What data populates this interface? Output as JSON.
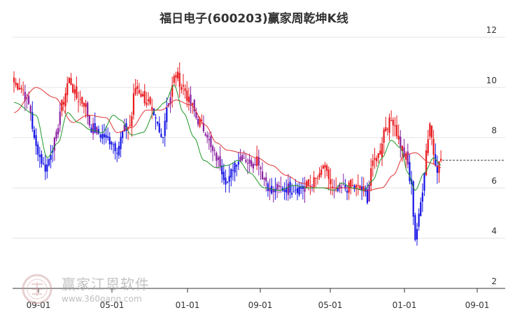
{
  "page": {
    "title": "福日电子(600203)赢家周乾坤K线",
    "watermark": {
      "brand": "赢家江恩软件",
      "url": "www.360gann.com",
      "logo_icon": "seal-logo-icon"
    }
  },
  "chart_data": {
    "type": "candlestick",
    "title": "福日电子(600203)赢家周乾坤K线",
    "xlabel": "",
    "ylabel": "",
    "x_ticks": [
      "09-01",
      "05-01",
      "01-01",
      "09-01",
      "05-01",
      "01-01",
      "09-01"
    ],
    "y_ticks": [
      2,
      4,
      6,
      8,
      10,
      12
    ],
    "ylim": [
      2,
      12.7
    ],
    "grid": true,
    "last_close_line": 7.1,
    "colors": {
      "up": "#e8191d",
      "down": "#1414e6",
      "neutral": "#8a1ea0",
      "ma_fast": "#1e9628",
      "ma_slow": "#e03232"
    },
    "ma_fast_anchors": [
      [
        0,
        9.4
      ],
      [
        12,
        8.9
      ],
      [
        18,
        7.2
      ],
      [
        24,
        7.8
      ],
      [
        29,
        9.0
      ],
      [
        35,
        8.6
      ],
      [
        42,
        8.3
      ],
      [
        48,
        8.2
      ],
      [
        54,
        8.9
      ],
      [
        58,
        8.7
      ],
      [
        64,
        8.1
      ],
      [
        70,
        8.2
      ],
      [
        77,
        9.1
      ],
      [
        82,
        9.4
      ],
      [
        87,
        10.1
      ],
      [
        92,
        9.0
      ],
      [
        98,
        8.0
      ],
      [
        103,
        7.1
      ],
      [
        110,
        6.8
      ],
      [
        116,
        6.9
      ],
      [
        122,
        7.1
      ],
      [
        128,
        6.6
      ],
      [
        136,
        6.0
      ],
      [
        144,
        5.9
      ],
      [
        152,
        6.1
      ],
      [
        160,
        6.0
      ],
      [
        168,
        6.0
      ],
      [
        174,
        5.9
      ],
      [
        178,
        6.2
      ],
      [
        184,
        6.0
      ],
      [
        190,
        5.9
      ],
      [
        195,
        6.3
      ],
      [
        200,
        7.2
      ],
      [
        205,
        7.9
      ],
      [
        210,
        7.6
      ],
      [
        214,
        6.6
      ],
      [
        218,
        5.9
      ],
      [
        223,
        6.6
      ],
      [
        228,
        7.2
      ],
      [
        232,
        6.9
      ]
    ],
    "ma_slow_anchors": [
      [
        0,
        9.0
      ],
      [
        12,
        10.0
      ],
      [
        22,
        9.6
      ],
      [
        32,
        8.6
      ],
      [
        40,
        8.9
      ],
      [
        50,
        8.8
      ],
      [
        56,
        8.2
      ],
      [
        64,
        8.4
      ],
      [
        72,
        9.1
      ],
      [
        80,
        9.1
      ],
      [
        88,
        9.5
      ],
      [
        96,
        9.3
      ],
      [
        104,
        8.5
      ],
      [
        110,
        7.8
      ],
      [
        116,
        7.5
      ],
      [
        124,
        7.4
      ],
      [
        132,
        7.2
      ],
      [
        140,
        6.9
      ],
      [
        148,
        6.5
      ],
      [
        156,
        6.2
      ],
      [
        164,
        6.0
      ],
      [
        172,
        6.0
      ],
      [
        182,
        6.0
      ],
      [
        192,
        5.9
      ],
      [
        200,
        6.0
      ],
      [
        206,
        6.5
      ],
      [
        212,
        7.3
      ],
      [
        218,
        7.4
      ],
      [
        226,
        7.0
      ],
      [
        232,
        6.8
      ]
    ],
    "close_anchors": [
      [
        0,
        10.2
      ],
      [
        4,
        10.0
      ],
      [
        8,
        9.3
      ],
      [
        12,
        7.6
      ],
      [
        17,
        6.8
      ],
      [
        22,
        7.8
      ],
      [
        26,
        9.3
      ],
      [
        30,
        10.3
      ],
      [
        34,
        9.6
      ],
      [
        38,
        9.4
      ],
      [
        42,
        8.4
      ],
      [
        48,
        8.1
      ],
      [
        52,
        7.9
      ],
      [
        56,
        7.6
      ],
      [
        60,
        8.3
      ],
      [
        63,
        8.5
      ],
      [
        66,
        10.0
      ],
      [
        72,
        9.5
      ],
      [
        77,
        8.6
      ],
      [
        80,
        8.0
      ],
      [
        84,
        9.5
      ],
      [
        88,
        10.5
      ],
      [
        92,
        10.0
      ],
      [
        96,
        9.3
      ],
      [
        100,
        8.7
      ],
      [
        104,
        8.3
      ],
      [
        108,
        7.4
      ],
      [
        112,
        7.0
      ],
      [
        114,
        6.5
      ],
      [
        116,
        6.2
      ],
      [
        120,
        7.0
      ],
      [
        124,
        7.3
      ],
      [
        128,
        7.0
      ],
      [
        132,
        7.2
      ],
      [
        136,
        6.4
      ],
      [
        140,
        5.8
      ],
      [
        144,
        6.0
      ],
      [
        150,
        6.0
      ],
      [
        156,
        6.0
      ],
      [
        160,
        6.1
      ],
      [
        166,
        6.4
      ],
      [
        168,
        6.9
      ],
      [
        170,
        6.5
      ],
      [
        174,
        5.8
      ],
      [
        180,
        6.0
      ],
      [
        186,
        6.0
      ],
      [
        190,
        5.9
      ],
      [
        192,
        5.6
      ],
      [
        194,
        6.8
      ],
      [
        198,
        7.3
      ],
      [
        202,
        8.5
      ],
      [
        206,
        8.7
      ],
      [
        210,
        7.7
      ],
      [
        213,
        7.2
      ],
      [
        216,
        6.0
      ],
      [
        218,
        4.0
      ],
      [
        220,
        4.8
      ],
      [
        222,
        6.0
      ],
      [
        224,
        7.5
      ],
      [
        226,
        8.6
      ],
      [
        228,
        7.4
      ],
      [
        230,
        6.8
      ],
      [
        232,
        7.1
      ]
    ],
    "summary": {
      "period": "weekly",
      "start_close": 10.2,
      "peak": 11.6,
      "trough": 3.6,
      "last_close": 7.1
    }
  }
}
